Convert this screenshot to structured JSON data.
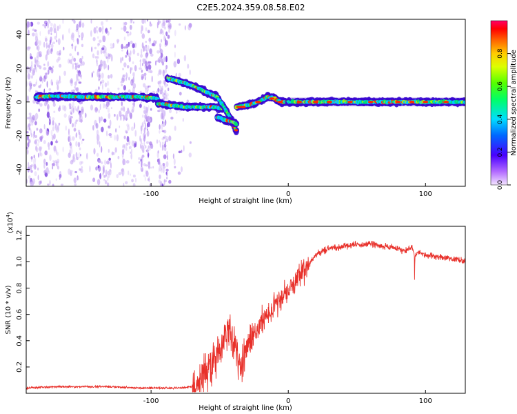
{
  "title": "C2E5.2024.359.08.58.E02",
  "chart_data": [
    {
      "type": "heatmap",
      "xlabel": "Height of straight line (km)",
      "ylabel": "Frequency (Hz)",
      "xlim": [
        -191,
        129
      ],
      "ylim": [
        -50,
        49
      ],
      "x_ticks": [
        -100,
        0,
        100
      ],
      "x_tick_labels": [
        "-100",
        "0",
        "100"
      ],
      "y_ticks": [
        -40,
        -20,
        0,
        20,
        40
      ],
      "y_tick_labels": [
        "-40",
        "-20",
        "0",
        "20",
        "40"
      ],
      "colorbar": {
        "label": "Normalized spectral amplitude",
        "range": [
          0,
          1
        ],
        "ticks": [
          0.0,
          0.2,
          0.4,
          0.6,
          0.8
        ],
        "tick_labels": [
          "0.0",
          "0.2",
          "0.4",
          "0.6",
          "0.8"
        ]
      },
      "traces": [
        {
          "x": [
            -184,
            -170,
            -150,
            -130,
            -110,
            -100,
            -95
          ],
          "y": [
            3,
            3.5,
            3,
            3,
            3,
            2.5,
            2
          ]
        },
        {
          "x": [
            -95,
            -85,
            -75,
            -65,
            -55,
            -48
          ],
          "y": [
            -1,
            -2,
            -3,
            -3,
            -3,
            -4
          ]
        },
        {
          "x": [
            -88,
            -78,
            -68,
            -60,
            -52,
            -46,
            -42,
            -38
          ],
          "y": [
            14,
            12,
            9,
            6,
            3,
            -4,
            -10,
            -17
          ]
        },
        {
          "x": [
            -52,
            -45,
            -40,
            -38
          ],
          "y": [
            -9,
            -11,
            -12,
            -13
          ]
        },
        {
          "x": [
            -38,
            -30,
            -22,
            -15,
            -10,
            -5,
            0
          ],
          "y": [
            -3,
            -2,
            0,
            3,
            2,
            0,
            0
          ]
        },
        {
          "x": [
            0,
            20,
            50,
            80,
            110,
            129
          ],
          "y": [
            0,
            0,
            0,
            0,
            0,
            0
          ]
        }
      ]
    },
    {
      "type": "line",
      "xlabel": "Height of straight line (km)",
      "ylabel": "SNR (10 * v/v)",
      "y_scale_label": "(x10",
      "y_scale_exp": "4",
      "y_scale_close": ")",
      "xlim": [
        -191,
        129
      ],
      "ylim": [
        0,
        1.27
      ],
      "x_ticks": [
        -100,
        0,
        100
      ],
      "x_tick_labels": [
        "-100",
        "0",
        "100"
      ],
      "y_ticks": [
        0.2,
        0.4,
        0.6,
        0.8,
        1.0,
        1.2
      ],
      "y_tick_labels": [
        "0.2",
        "0.4",
        "0.6",
        "0.8",
        "1.0",
        "1.2"
      ],
      "color": "#e8302a",
      "series": [
        {
          "x": [
            -191,
            -170,
            -150,
            -130,
            -110,
            -90,
            -80,
            -70,
            -65,
            -60,
            -55,
            -50,
            -45,
            -42,
            -40,
            -38,
            -35,
            -32,
            -30,
            -25,
            -20,
            -15,
            -10,
            -5,
            0,
            5,
            10,
            15,
            20,
            25,
            30,
            40,
            50,
            60,
            70,
            80,
            85,
            90,
            92,
            95,
            100,
            110,
            120,
            129
          ],
          "y": [
            0.04,
            0.05,
            0.05,
            0.05,
            0.04,
            0.04,
            0.04,
            0.05,
            0.08,
            0.15,
            0.25,
            0.33,
            0.45,
            0.5,
            0.35,
            0.3,
            0.18,
            0.3,
            0.35,
            0.45,
            0.55,
            0.6,
            0.68,
            0.72,
            0.78,
            0.85,
            0.92,
            0.98,
            1.05,
            1.08,
            1.1,
            1.12,
            1.13,
            1.14,
            1.12,
            1.1,
            1.08,
            1.12,
            1.05,
            1.07,
            1.05,
            1.04,
            1.02,
            1.0
          ]
        }
      ]
    }
  ]
}
